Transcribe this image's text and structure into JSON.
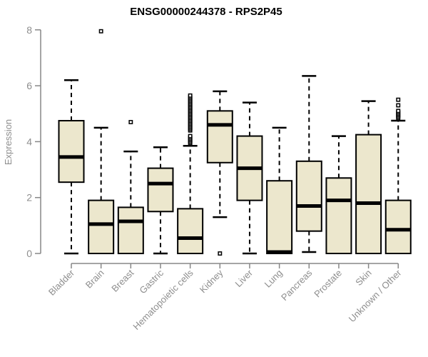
{
  "title": "ENSG00000244378 - RPS2P45",
  "y_axis": {
    "label": "Expression",
    "ticks": [
      0,
      2,
      4,
      6,
      8
    ]
  },
  "colors": {
    "box_fill": "#ece7cd",
    "box_border": "#000000",
    "median": "#000000",
    "whisker": "#000000",
    "axis": "#878787",
    "tick_text": "#8e8e8e",
    "title_text": "#000000"
  },
  "chart_data": {
    "type": "boxplot",
    "title": "ENSG00000244378 - RPS2P45",
    "xlabel": "",
    "ylabel": "Expression",
    "ylim": [
      0,
      8
    ],
    "yticks": [
      0,
      2,
      4,
      6,
      8
    ],
    "grid": false,
    "categories": [
      "Bladder",
      "Brain",
      "Breast",
      "Gastric",
      "Hematopoietic cells",
      "Kidney",
      "Liver",
      "Lung",
      "Pancreas",
      "Prostate",
      "Skin",
      "Unknown / Other"
    ],
    "boxes": [
      {
        "category": "Bladder",
        "low": 0,
        "q1": 2.55,
        "median": 3.45,
        "q3": 4.75,
        "high": 6.2,
        "outliers": []
      },
      {
        "category": "Brain",
        "low": 0,
        "q1": 0,
        "median": 1.05,
        "q3": 1.9,
        "high": 4.5,
        "outliers": [
          7.95
        ]
      },
      {
        "category": "Breast",
        "low": 0,
        "q1": 0,
        "median": 1.15,
        "q3": 1.65,
        "high": 3.65,
        "outliers": [
          4.7
        ]
      },
      {
        "category": "Gastric",
        "low": 0,
        "q1": 1.5,
        "median": 2.5,
        "q3": 3.05,
        "high": 3.8,
        "outliers": []
      },
      {
        "category": "Hematopoietic cells",
        "low": 0,
        "q1": 0,
        "median": 0.55,
        "q3": 1.6,
        "high": 3.85,
        "outliers": [
          3.95,
          4.0,
          4.05,
          4.1,
          4.15,
          4.2,
          4.4,
          4.45,
          4.5,
          4.55,
          4.6,
          4.65,
          4.7,
          4.75,
          4.8,
          4.85,
          4.9,
          4.95,
          5.0,
          5.05,
          5.1,
          5.15,
          5.2,
          5.25,
          5.3,
          5.35,
          5.4,
          5.45,
          5.5,
          5.55,
          5.6,
          5.65
        ]
      },
      {
        "category": "Kidney",
        "low": 1.3,
        "q1": 3.25,
        "median": 4.6,
        "q3": 5.1,
        "high": 5.8,
        "outliers": [
          0
        ]
      },
      {
        "category": "Liver",
        "low": 0,
        "q1": 1.9,
        "median": 3.05,
        "q3": 4.2,
        "high": 5.4,
        "outliers": []
      },
      {
        "category": "Lung",
        "low": 0,
        "q1": 0,
        "median": 0.05,
        "q3": 2.6,
        "high": 4.5,
        "outliers": []
      },
      {
        "category": "Pancreas",
        "low": 0.05,
        "q1": 0.8,
        "median": 1.7,
        "q3": 3.3,
        "high": 6.35,
        "outliers": []
      },
      {
        "category": "Prostate",
        "low": 0,
        "q1": 0,
        "median": 1.9,
        "q3": 2.7,
        "high": 4.2,
        "outliers": []
      },
      {
        "category": "Skin",
        "low": 0,
        "q1": 0,
        "median": 1.8,
        "q3": 4.25,
        "high": 5.45,
        "outliers": []
      },
      {
        "category": "Unknown / Other",
        "low": 0,
        "q1": 0,
        "median": 0.85,
        "q3": 1.9,
        "high": 4.75,
        "outliers": [
          4.85,
          4.9,
          4.95,
          5.0,
          5.05,
          5.1,
          5.3,
          5.5
        ]
      }
    ]
  }
}
